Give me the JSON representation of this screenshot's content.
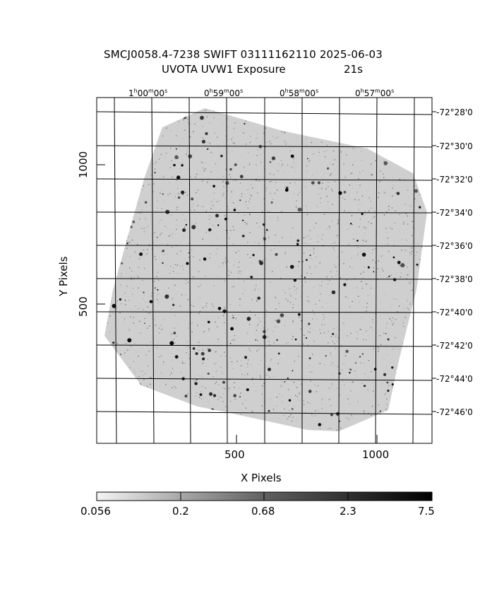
{
  "title_line1": "SMCJ0058.4-7238 SWIFT 03111162110 2025-06-03",
  "title_line2": "UVOTA UVW1 Exposure",
  "exposure": "21s",
  "xlabel": "X Pixels",
  "ylabel": "Y Pixels",
  "x_ticks": [
    "500",
    "1000"
  ],
  "y_ticks": [
    "500",
    "1000"
  ],
  "ra_labels": [
    {
      "h": "1",
      "m": "00",
      "s": "00"
    },
    {
      "h": "0",
      "m": "59",
      "s": "00"
    },
    {
      "h": "0",
      "m": "58",
      "s": "00"
    },
    {
      "h": "0",
      "m": "57",
      "s": "00"
    }
  ],
  "dec_labels": [
    "-72°28'0",
    "-72°30'0",
    "-72°32'0",
    "-72°34'0",
    "-72°36'0",
    "-72°38'0",
    "-72°40'0",
    "-72°42'0",
    "-72°44'0",
    "-72°46'0"
  ],
  "colorbar_ticks": [
    "0.056",
    "0.2",
    "0.68",
    "2.3",
    "7.5"
  ],
  "colormap": "grayscale"
}
